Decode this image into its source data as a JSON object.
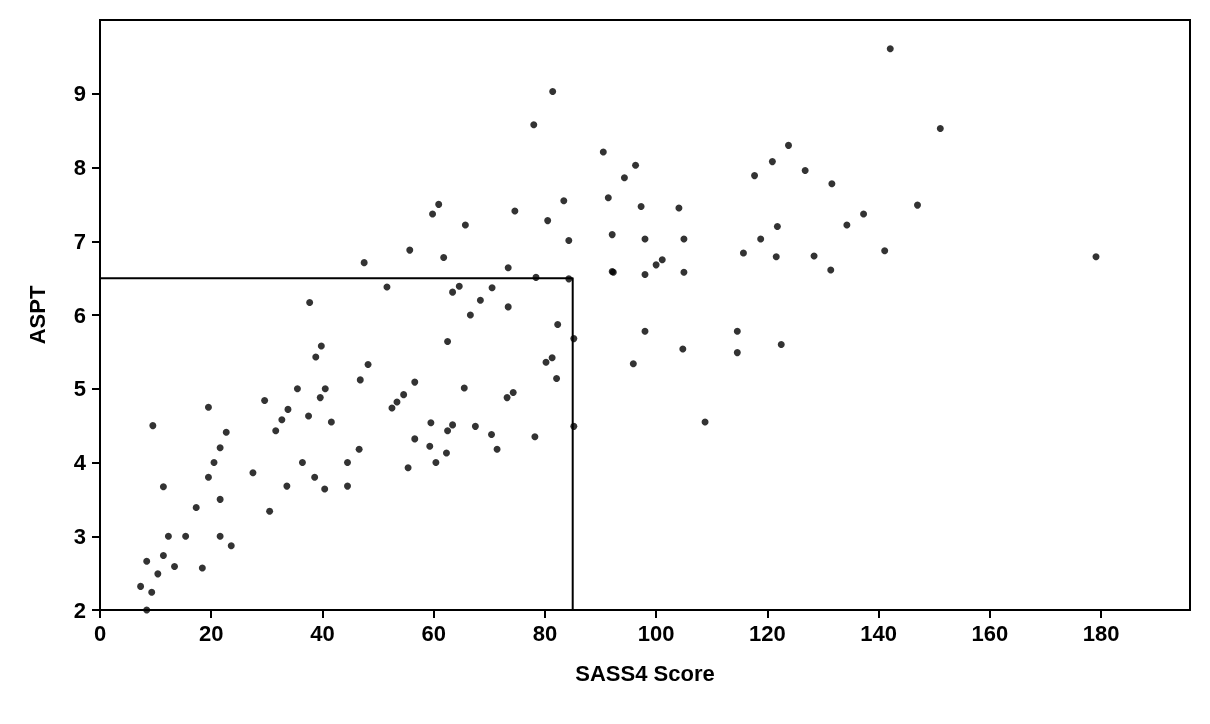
{
  "chart_data": {
    "type": "scatter",
    "xlabel": "SASS4 Score",
    "ylabel": "ASPT",
    "xlim": [
      0,
      196
    ],
    "ylim": [
      2,
      10
    ],
    "xticks": [
      0,
      20,
      40,
      60,
      80,
      100,
      120,
      140,
      160,
      180
    ],
    "yticks": [
      2,
      3,
      4,
      5,
      6,
      7,
      8,
      9
    ],
    "marker": "circle",
    "series": [
      {
        "color": "#000000",
        "x": [
          47.5,
          37.7,
          39.8,
          38.8,
          48.2,
          46.8,
          35.5,
          40.5,
          29.6,
          39.6,
          19.5,
          33.8,
          32.7,
          37.5,
          31.6,
          41.6,
          9.5,
          22.7,
          21.6,
          46.6,
          20.5,
          36.4,
          44.5,
          27.5,
          19.5,
          38.6,
          33.6,
          44.5,
          40.4,
          11.4,
          21.6,
          17.3,
          30.5,
          12.3,
          15.4,
          21.6,
          23.6,
          8.4,
          11.4,
          13.4,
          18.4,
          10.4,
          7.3,
          9.3,
          8.4,
          60.9,
          59.8,
          74.6,
          83.4,
          91.4,
          80.5,
          65.7,
          92.1,
          84.3,
          55.7,
          61.8,
          73.4,
          92.1,
          78.4,
          84.3,
          51.6,
          64.6,
          63.4,
          70.5,
          68.4,
          73.4,
          66.6,
          82.3,
          85.2,
          62.5,
          81.3,
          80.2,
          82.1,
          56.6,
          65.5,
          74.3,
          73.2,
          54.6,
          53.4,
          52.5,
          59.5,
          63.4,
          62.5,
          67.5,
          70.4,
          78.2,
          85.2,
          56.6,
          59.3,
          62.3,
          71.4,
          60.4,
          55.4,
          90.5,
          96.3,
          94.3,
          97.3,
          104.1,
          98.0,
          105.0,
          100.0,
          101.1,
          92.3,
          98.0,
          105.0,
          117.7,
          120.9,
          123.8,
          126.8,
          131.6,
          121.8,
          118.8,
          115.7,
          121.6,
          128.4,
          131.4,
          134.3,
          98.0,
          104.8,
          95.9,
          114.6,
          114.6,
          122.5,
          108.8,
          142.1,
          151.1,
          147.0,
          137.3,
          141.1,
          179.1,
          81.4,
          78.0
        ],
        "values": [
          6.71,
          6.17,
          5.58,
          5.43,
          5.33,
          5.12,
          5.0,
          5.0,
          4.84,
          4.88,
          4.75,
          4.72,
          4.58,
          4.63,
          4.43,
          4.55,
          4.5,
          4.41,
          4.2,
          4.18,
          4.0,
          4.0,
          4.0,
          3.86,
          3.8,
          3.8,
          3.68,
          3.68,
          3.64,
          3.67,
          3.5,
          3.39,
          3.34,
          3.0,
          3.0,
          3.0,
          2.87,
          2.66,
          2.74,
          2.59,
          2.57,
          2.49,
          2.32,
          2.24,
          2.0,
          7.5,
          7.37,
          7.41,
          7.55,
          7.59,
          7.28,
          7.22,
          7.09,
          7.01,
          6.88,
          6.78,
          6.64,
          6.59,
          6.51,
          6.49,
          6.38,
          6.39,
          6.31,
          6.37,
          6.2,
          6.11,
          6.0,
          5.87,
          5.68,
          5.64,
          5.42,
          5.36,
          5.14,
          5.09,
          5.01,
          4.95,
          4.88,
          4.92,
          4.82,
          4.74,
          4.54,
          4.51,
          4.43,
          4.49,
          4.38,
          4.35,
          4.49,
          4.32,
          4.22,
          4.13,
          4.18,
          4.0,
          3.93,
          8.21,
          8.03,
          7.86,
          7.47,
          7.45,
          7.03,
          7.03,
          6.68,
          6.75,
          6.58,
          6.55,
          6.58,
          7.89,
          8.08,
          8.3,
          7.96,
          7.78,
          7.2,
          7.03,
          6.84,
          6.79,
          6.8,
          6.61,
          7.22,
          5.78,
          5.54,
          5.34,
          5.78,
          5.49,
          5.6,
          4.55,
          9.61,
          8.53,
          7.49,
          7.37,
          6.87,
          6.79,
          9.03,
          8.58
        ]
      },
      {
        "type": "line",
        "color": "#000000",
        "marker": "none",
        "x": [
          0,
          85,
          85
        ],
        "values": [
          6.5,
          6.5,
          2
        ]
      }
    ]
  }
}
